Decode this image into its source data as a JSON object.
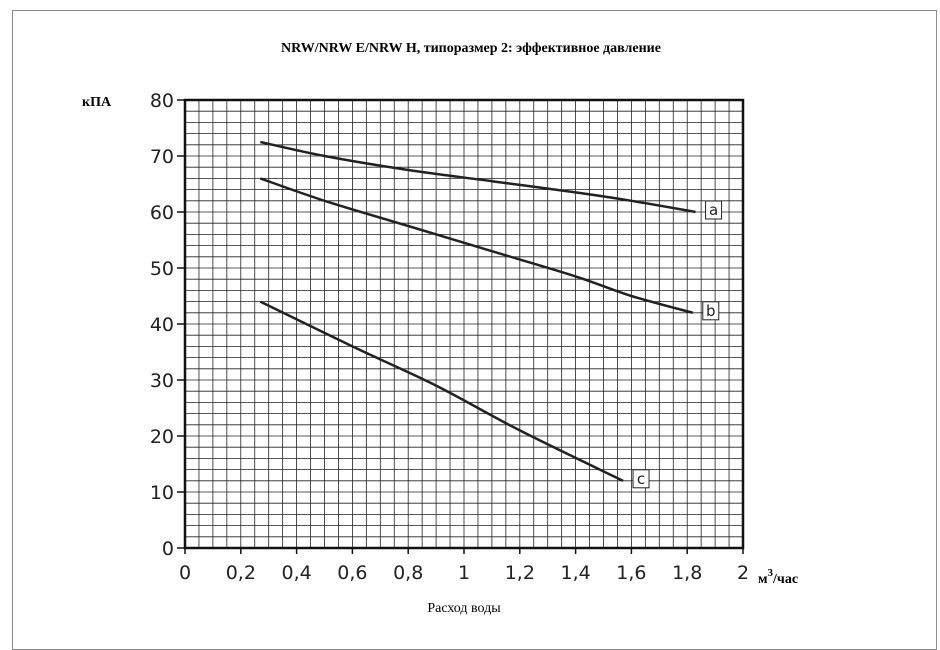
{
  "chart_data": {
    "type": "line",
    "title": "NRW/NRW E/NRW H, типоразмер 2: эффективное давление",
    "ylabel": "кПА",
    "xlabel": "Расход воды",
    "xunit_base": "м",
    "xunit_sup": "3",
    "xunit_rest": "/час",
    "xlim": [
      0,
      2
    ],
    "ylim": [
      0,
      80
    ],
    "x_ticks": [
      "0",
      "0,2",
      "0,4",
      "0,6",
      "0,8",
      "1",
      "1,2",
      "1,4",
      "1,6",
      "1,8",
      "2"
    ],
    "y_ticks": [
      "0",
      "10",
      "20",
      "30",
      "40",
      "50",
      "60",
      "70",
      "80"
    ],
    "grid": true,
    "series": [
      {
        "name": "a",
        "x": [
          0.27,
          0.5,
          0.8,
          1.1,
          1.4,
          1.6,
          1.83
        ],
        "y": [
          72.5,
          70,
          67.5,
          65.5,
          63.5,
          62,
          60
        ]
      },
      {
        "name": "b",
        "x": [
          0.27,
          0.5,
          0.8,
          1.1,
          1.4,
          1.6,
          1.82
        ],
        "y": [
          66,
          62,
          57.5,
          53,
          48.5,
          45,
          42
        ]
      },
      {
        "name": "c",
        "x": [
          0.27,
          0.6,
          0.9,
          1.2,
          1.57
        ],
        "y": [
          44,
          36,
          29,
          21,
          12
        ]
      }
    ],
    "line_color": "#222222",
    "grid_color": "#222222"
  }
}
